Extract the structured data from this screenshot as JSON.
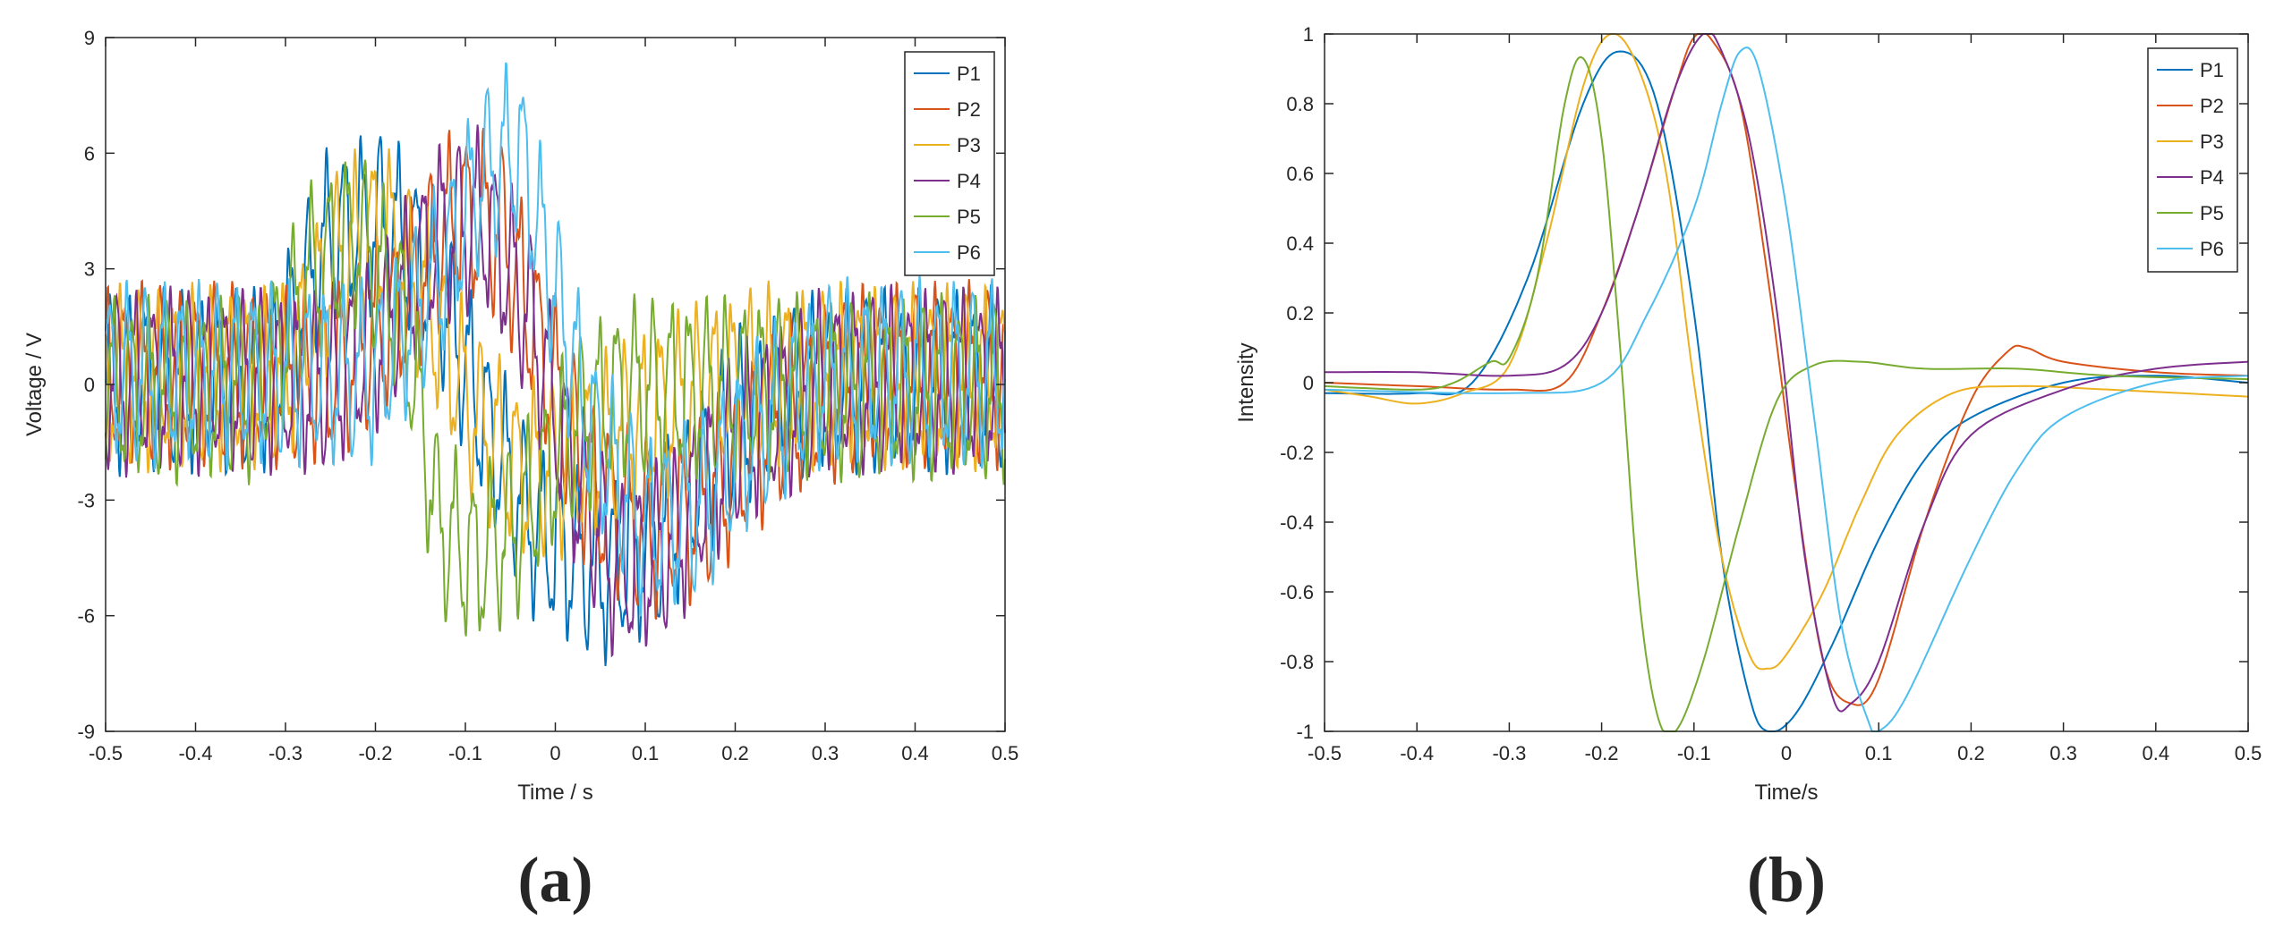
{
  "chart_data": [
    {
      "type": "line",
      "panel_label": "(a)",
      "xlabel": "Time / s",
      "ylabel": "Voltage / V",
      "xlim": [
        -0.5,
        0.5
      ],
      "ylim": [
        -9,
        9
      ],
      "xticks": [
        -0.5,
        -0.4,
        -0.3,
        -0.2,
        -0.1,
        0,
        0.1,
        0.2,
        0.3,
        0.4,
        0.5
      ],
      "xtick_labels": [
        "-0.5",
        "-0.4",
        "-0.3",
        "-0.2",
        "-0.1",
        "0",
        "0.1",
        "0.2",
        "0.3",
        "0.4",
        "0.5"
      ],
      "yticks": [
        -9,
        -6,
        -3,
        0,
        3,
        6,
        9
      ],
      "ytick_labels": [
        "-9",
        "-6",
        "-3",
        "0",
        "3",
        "6",
        "9"
      ],
      "grid": false,
      "legend_position": "top-right",
      "note": "noisy oscillating signals; envelope values estimated",
      "series": [
        {
          "name": "P1",
          "color": "#0072BD",
          "offset": 0.1,
          "env": [
            [
              -0.5,
              0
            ],
            [
              -0.32,
              0
            ],
            [
              -0.25,
              3.8
            ],
            [
              -0.19,
              4.2
            ],
            [
              -0.13,
              2.5
            ],
            [
              -0.08,
              -1
            ],
            [
              -0.02,
              -4
            ],
            [
              0.05,
              -5
            ],
            [
              0.12,
              -4
            ],
            [
              0.2,
              -1
            ],
            [
              0.3,
              0
            ],
            [
              0.5,
              0
            ]
          ]
        },
        {
          "name": "P2",
          "color": "#D95319",
          "offset": 0.25,
          "env": [
            [
              -0.5,
              0
            ],
            [
              -0.25,
              0
            ],
            [
              -0.18,
              1.5
            ],
            [
              -0.11,
              4.2
            ],
            [
              -0.06,
              3.8
            ],
            [
              -0.02,
              1
            ],
            [
              0.04,
              -3
            ],
            [
              0.1,
              -4
            ],
            [
              0.16,
              -3.5
            ],
            [
              0.25,
              -1
            ],
            [
              0.35,
              0
            ],
            [
              0.5,
              0
            ]
          ]
        },
        {
          "name": "P3",
          "color": "#EDB120",
          "offset": 0.2,
          "env": [
            [
              -0.5,
              0
            ],
            [
              -0.3,
              0
            ],
            [
              -0.24,
              3.2
            ],
            [
              -0.19,
              3.8
            ],
            [
              -0.14,
              1.8
            ],
            [
              -0.09,
              -1
            ],
            [
              -0.04,
              -2.5
            ],
            [
              0.02,
              -2.2
            ],
            [
              0.08,
              -1.3
            ],
            [
              0.15,
              -0.5
            ],
            [
              0.22,
              0
            ],
            [
              0.5,
              0
            ]
          ]
        },
        {
          "name": "P4",
          "color": "#7E2F8E",
          "offset": 0.1,
          "env": [
            [
              -0.5,
              0
            ],
            [
              -0.25,
              0
            ],
            [
              -0.2,
              1
            ],
            [
              -0.13,
              3.8
            ],
            [
              -0.08,
              4.2
            ],
            [
              -0.03,
              1.8
            ],
            [
              0.02,
              -2.5
            ],
            [
              0.07,
              -5
            ],
            [
              0.13,
              -4.2
            ],
            [
              0.2,
              -1.5
            ],
            [
              0.3,
              0
            ],
            [
              0.5,
              0
            ]
          ]
        },
        {
          "name": "P5",
          "color": "#77AC30",
          "offset": -0.1,
          "env": [
            [
              -0.5,
              0
            ],
            [
              -0.33,
              0
            ],
            [
              -0.27,
              3
            ],
            [
              -0.22,
              4
            ],
            [
              -0.17,
              2
            ],
            [
              -0.13,
              -3.5
            ],
            [
              -0.09,
              -4.5
            ],
            [
              -0.04,
              -3.5
            ],
            [
              0.02,
              -1
            ],
            [
              0.08,
              0
            ],
            [
              0.5,
              0
            ]
          ]
        },
        {
          "name": "P6",
          "color": "#4DBEEE",
          "offset": 0.3,
          "env": [
            [
              -0.5,
              0
            ],
            [
              -0.2,
              0
            ],
            [
              -0.13,
              2.5
            ],
            [
              -0.08,
              5.2
            ],
            [
              -0.04,
              5.8
            ],
            [
              -0.01,
              3
            ],
            [
              0.04,
              -1.5
            ],
            [
              0.1,
              -4
            ],
            [
              0.16,
              -3.5
            ],
            [
              0.22,
              -1.5
            ],
            [
              0.3,
              0
            ],
            [
              0.5,
              0
            ]
          ]
        }
      ]
    },
    {
      "type": "line",
      "panel_label": "(b)",
      "xlabel": "Time/s",
      "ylabel": "Intensity",
      "xlim": [
        -0.5,
        0.5
      ],
      "ylim": [
        -1,
        1
      ],
      "xticks": [
        -0.5,
        -0.4,
        -0.3,
        -0.2,
        -0.1,
        0,
        0.1,
        0.2,
        0.3,
        0.4,
        0.5
      ],
      "xtick_labels": [
        "-0.5",
        "-0.4",
        "-0.3",
        "-0.2",
        "-0.1",
        "0",
        "0.1",
        "0.2",
        "0.3",
        "0.4",
        "0.5"
      ],
      "yticks": [
        -1,
        -0.8,
        -0.6,
        -0.4,
        -0.2,
        0,
        0.2,
        0.4,
        0.6,
        0.8,
        1
      ],
      "ytick_labels": [
        "-1",
        "-0.8",
        "-0.6",
        "-0.4",
        "-0.2",
        "0",
        "0.2",
        "0.4",
        "0.6",
        "0.8",
        "1"
      ],
      "grid": false,
      "legend_position": "top-right",
      "series": [
        {
          "name": "P1",
          "color": "#0072BD",
          "points": [
            [
              -0.5,
              -0.03
            ],
            [
              -0.4,
              -0.03
            ],
            [
              -0.34,
              0.0
            ],
            [
              -0.28,
              0.3
            ],
            [
              -0.22,
              0.8
            ],
            [
              -0.18,
              0.95
            ],
            [
              -0.14,
              0.8
            ],
            [
              -0.1,
              0.2
            ],
            [
              -0.07,
              -0.5
            ],
            [
              -0.04,
              -0.9
            ],
            [
              -0.02,
              -1.0
            ],
            [
              0.01,
              -0.95
            ],
            [
              0.05,
              -0.75
            ],
            [
              0.1,
              -0.45
            ],
            [
              0.15,
              -0.22
            ],
            [
              0.2,
              -0.1
            ],
            [
              0.3,
              0.0
            ],
            [
              0.4,
              0.02
            ],
            [
              0.5,
              0.0
            ]
          ]
        },
        {
          "name": "P2",
          "color": "#D95319",
          "points": [
            [
              -0.5,
              0.0
            ],
            [
              -0.4,
              -0.01
            ],
            [
              -0.3,
              -0.02
            ],
            [
              -0.24,
              0.0
            ],
            [
              -0.2,
              0.2
            ],
            [
              -0.16,
              0.5
            ],
            [
              -0.12,
              0.85
            ],
            [
              -0.1,
              0.99
            ],
            [
              -0.08,
              0.98
            ],
            [
              -0.05,
              0.8
            ],
            [
              -0.02,
              0.3
            ],
            [
              0.01,
              -0.3
            ],
            [
              0.04,
              -0.8
            ],
            [
              0.07,
              -0.92
            ],
            [
              0.1,
              -0.85
            ],
            [
              0.15,
              -0.4
            ],
            [
              0.2,
              -0.05
            ],
            [
              0.24,
              0.09
            ],
            [
              0.26,
              0.1
            ],
            [
              0.3,
              0.06
            ],
            [
              0.4,
              0.03
            ],
            [
              0.5,
              0.02
            ]
          ]
        },
        {
          "name": "P3",
          "color": "#EDB120",
          "points": [
            [
              -0.5,
              -0.02
            ],
            [
              -0.45,
              -0.04
            ],
            [
              -0.4,
              -0.06
            ],
            [
              -0.35,
              -0.03
            ],
            [
              -0.3,
              0.05
            ],
            [
              -0.26,
              0.4
            ],
            [
              -0.22,
              0.85
            ],
            [
              -0.19,
              1.0
            ],
            [
              -0.16,
              0.9
            ],
            [
              -0.13,
              0.6
            ],
            [
              -0.1,
              0.0
            ],
            [
              -0.07,
              -0.5
            ],
            [
              -0.04,
              -0.78
            ],
            [
              -0.02,
              -0.82
            ],
            [
              0.0,
              -0.78
            ],
            [
              0.04,
              -0.6
            ],
            [
              0.08,
              -0.35
            ],
            [
              0.12,
              -0.15
            ],
            [
              0.18,
              -0.03
            ],
            [
              0.25,
              -0.01
            ],
            [
              0.35,
              -0.02
            ],
            [
              0.5,
              -0.04
            ]
          ]
        },
        {
          "name": "P4",
          "color": "#7E2F8E",
          "points": [
            [
              -0.5,
              0.03
            ],
            [
              -0.4,
              0.03
            ],
            [
              -0.3,
              0.02
            ],
            [
              -0.24,
              0.05
            ],
            [
              -0.2,
              0.2
            ],
            [
              -0.16,
              0.5
            ],
            [
              -0.12,
              0.85
            ],
            [
              -0.09,
              1.0
            ],
            [
              -0.07,
              0.95
            ],
            [
              -0.04,
              0.7
            ],
            [
              -0.01,
              0.2
            ],
            [
              0.02,
              -0.5
            ],
            [
              0.05,
              -0.9
            ],
            [
              0.07,
              -0.92
            ],
            [
              0.1,
              -0.8
            ],
            [
              0.15,
              -0.4
            ],
            [
              0.2,
              -0.15
            ],
            [
              0.3,
              -0.02
            ],
            [
              0.4,
              0.04
            ],
            [
              0.5,
              0.06
            ]
          ]
        },
        {
          "name": "P5",
          "color": "#77AC30",
          "points": [
            [
              -0.5,
              -0.01
            ],
            [
              -0.4,
              -0.02
            ],
            [
              -0.36,
              0.0
            ],
            [
              -0.32,
              0.06
            ],
            [
              -0.3,
              0.07
            ],
            [
              -0.27,
              0.3
            ],
            [
              -0.24,
              0.8
            ],
            [
              -0.22,
              0.93
            ],
            [
              -0.2,
              0.7
            ],
            [
              -0.18,
              0.1
            ],
            [
              -0.16,
              -0.6
            ],
            [
              -0.14,
              -0.95
            ],
            [
              -0.12,
              -1.0
            ],
            [
              -0.09,
              -0.8
            ],
            [
              -0.05,
              -0.4
            ],
            [
              -0.01,
              -0.05
            ],
            [
              0.03,
              0.05
            ],
            [
              0.08,
              0.06
            ],
            [
              0.15,
              0.04
            ],
            [
              0.25,
              0.04
            ],
            [
              0.35,
              0.02
            ],
            [
              0.5,
              0.01
            ]
          ]
        },
        {
          "name": "P6",
          "color": "#4DBEEE",
          "points": [
            [
              -0.5,
              -0.02
            ],
            [
              -0.3,
              -0.03
            ],
            [
              -0.2,
              0.0
            ],
            [
              -0.15,
              0.2
            ],
            [
              -0.1,
              0.5
            ],
            [
              -0.07,
              0.8
            ],
            [
              -0.05,
              0.95
            ],
            [
              -0.03,
              0.9
            ],
            [
              0.0,
              0.5
            ],
            [
              0.03,
              -0.1
            ],
            [
              0.06,
              -0.7
            ],
            [
              0.09,
              -0.98
            ],
            [
              0.1,
              -1.0
            ],
            [
              0.13,
              -0.9
            ],
            [
              0.2,
              -0.5
            ],
            [
              0.25,
              -0.25
            ],
            [
              0.3,
              -0.1
            ],
            [
              0.4,
              0.0
            ],
            [
              0.5,
              0.02
            ]
          ]
        }
      ]
    }
  ]
}
